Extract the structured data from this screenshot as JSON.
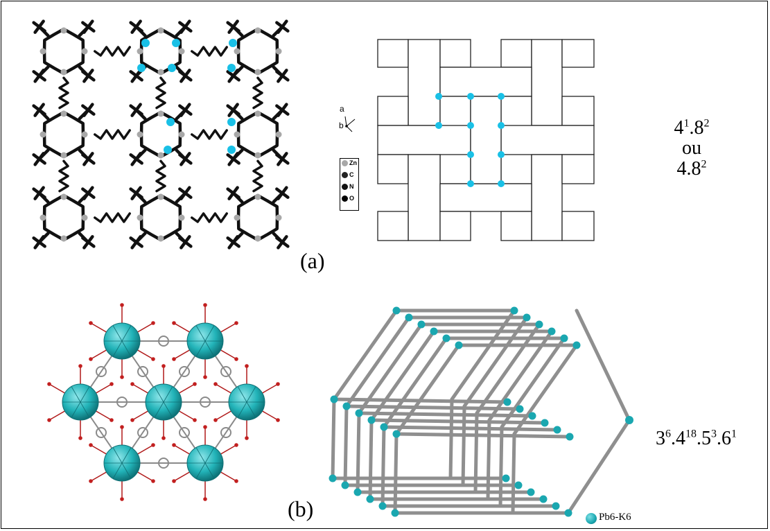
{
  "figure": {
    "panel_a": {
      "label": "(a)",
      "axes": {
        "a": "a",
        "b": "b"
      },
      "legend": [
        "Zn",
        "C",
        "N",
        "O"
      ],
      "topology_line1_base": "4",
      "topology_line1_exp1": "1",
      "topology_line1_mid": ".8",
      "topology_line1_exp2": "2",
      "topology_line2": "ou",
      "topology_line3_base": "4.8",
      "topology_line3_exp": "2"
    },
    "panel_b": {
      "label": "(b)",
      "legend_label": "Pb6-K6",
      "topology": {
        "b1": "3",
        "e1": "6",
        "b2": ".4",
        "e2": "18",
        "b3": ".5",
        "e3": "3",
        "b4": ".6",
        "e4": "1"
      }
    }
  },
  "colors": {
    "node_cyan": "#19c0e6",
    "cluster_teal": "#22b3b8",
    "rod_gray": "#8f8f8f",
    "bond_red": "#b01818",
    "line_black": "#111111"
  }
}
